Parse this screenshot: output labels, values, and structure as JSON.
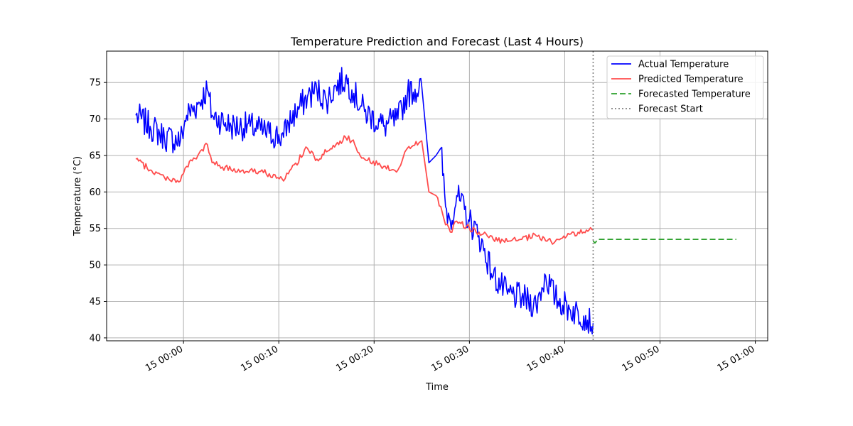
{
  "chart_data": {
    "type": "line",
    "title": "Temperature Prediction and Forecast (Last 4 Hours)",
    "xlabel": "Time",
    "ylabel": "Temperature (°C)",
    "grid": true,
    "legend_position": "top-right",
    "xlim": [
      "14 23:51:56",
      "15 01:01:18"
    ],
    "ylim": [
      39.6,
      79.3
    ],
    "x_ticks": [
      "15 00:00",
      "15 00:10",
      "15 00:20",
      "15 00:30",
      "15 00:40",
      "15 00:50",
      "15 01:00"
    ],
    "y_ticks": [
      40,
      45,
      50,
      55,
      60,
      65,
      70,
      75
    ],
    "forecast_start": "15 00:42:59",
    "series": [
      {
        "name": "Actual Temperature",
        "color": "#0000ff",
        "style": "solid",
        "x": [
          "14 23:55:00",
          "14 23:56:30",
          "14 23:58:00",
          "14 23:59:40",
          "15 00:00:20",
          "15 00:01:30",
          "15 00:02:30",
          "15 00:03:00",
          "15 00:05:00",
          "15 00:07:00",
          "15 00:09:00",
          "15 00:10:30",
          "15 00:11:00",
          "15 00:13:00",
          "15 00:14:00",
          "15 00:15:00",
          "15 00:16:00",
          "15 00:17:00",
          "15 00:17:40",
          "15 00:19:00",
          "15 00:21:00",
          "15 00:22:30",
          "15 00:23:30",
          "15 00:25:00",
          "15 00:25:45",
          "15 00:26:30",
          "15 00:27:00",
          "15 00:27:30",
          "15 00:28:00",
          "15 00:28:40",
          "15 00:30:00",
          "15 00:31:00",
          "15 00:32:30",
          "15 00:34:00",
          "15 00:35:30",
          "15 00:37:00",
          "15 00:38:00",
          "15 00:39:00",
          "15 00:40:30",
          "15 00:42:00",
          "15 00:42:59"
        ],
        "y": [
          70.5,
          69,
          67.5,
          67,
          70.5,
          72,
          74,
          70.5,
          69,
          69,
          68,
          67.5,
          69.5,
          73,
          74,
          72.5,
          74.5,
          75.5,
          74,
          71,
          69,
          70,
          73.5,
          74.5,
          64,
          65,
          66,
          58,
          56,
          59.5,
          56,
          54,
          48.5,
          46,
          45.5,
          44.5,
          48.5,
          45.5,
          44,
          43,
          42
        ]
      },
      {
        "name": "Predicted Temperature",
        "color": "#ff4d4d",
        "style": "solid",
        "x": [
          "14 23:55:00",
          "14 23:56:30",
          "14 23:58:00",
          "14 23:59:40",
          "15 00:00:20",
          "15 00:01:30",
          "15 00:02:30",
          "15 00:03:00",
          "15 00:05:00",
          "15 00:07:00",
          "15 00:09:00",
          "15 00:10:30",
          "15 00:11:00",
          "15 00:13:00",
          "15 00:14:00",
          "15 00:15:00",
          "15 00:16:00",
          "15 00:17:00",
          "15 00:17:40",
          "15 00:19:00",
          "15 00:21:00",
          "15 00:22:30",
          "15 00:23:30",
          "15 00:25:00",
          "15 00:25:45",
          "15 00:26:30",
          "15 00:27:00",
          "15 00:27:30",
          "15 00:28:00",
          "15 00:28:40",
          "15 00:30:00",
          "15 00:31:00",
          "15 00:32:30",
          "15 00:34:00",
          "15 00:35:30",
          "15 00:37:00",
          "15 00:38:00",
          "15 00:39:00",
          "15 00:40:30",
          "15 00:42:00",
          "15 00:42:59"
        ],
        "y": [
          64.5,
          63,
          62,
          61.5,
          63.5,
          65,
          66.5,
          64,
          63,
          63,
          62.5,
          61.5,
          62.5,
          66,
          64.5,
          65.5,
          66.5,
          67.5,
          67,
          64.5,
          63.5,
          63,
          66,
          67,
          60,
          59.5,
          58,
          55.5,
          54.5,
          56,
          55,
          54.5,
          53.5,
          53.2,
          53.5,
          54,
          53.3,
          53.2,
          54.2,
          54.5,
          54.8
        ]
      },
      {
        "name": "Forecasted Temperature",
        "color": "#2ca02c",
        "style": "dashed",
        "x": [
          "15 00:42:59",
          "15 00:43:10",
          "15 00:43:30",
          "15 00:58:00"
        ],
        "y": [
          53.3,
          53.0,
          53.5,
          53.5
        ]
      },
      {
        "name": "Forecast Start",
        "color": "#808080",
        "style": "dotted"
      }
    ]
  }
}
